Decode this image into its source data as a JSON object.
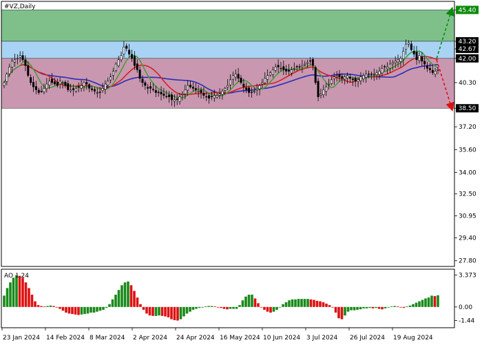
{
  "chart_data": [
    {
      "type": "candlestick",
      "title": "#VZ,Daily",
      "y_ticks": [
        "45.40",
        "43.20",
        "42.67",
        "42.00",
        "40.30",
        "38.50",
        "37.20",
        "35.60",
        "34.00",
        "32.50",
        "30.95",
        "29.40",
        "27.80"
      ],
      "highlighted_levels": [
        {
          "value": 45.4,
          "label": "45.40",
          "color": "#0a8a0a"
        },
        {
          "value": 43.2,
          "label": "43.20",
          "color": "#000000"
        },
        {
          "value": 42.67,
          "label": "42.67",
          "color": "#000000"
        },
        {
          "value": 42.0,
          "label": "42.00",
          "color": "#000000"
        },
        {
          "value": 38.5,
          "label": "38.50",
          "color": "#000000"
        }
      ],
      "zones": [
        {
          "name": "resistance-zone",
          "from": 43.2,
          "to": 45.4,
          "color": "#7fc08a"
        },
        {
          "name": "range-upper-zone",
          "from": 42.0,
          "to": 43.2,
          "color": "#a9d3f5"
        },
        {
          "name": "range-lower-zone",
          "from": 38.5,
          "to": 42.0,
          "color": "#c998b0"
        }
      ],
      "x_ticks": [
        "23 Jan 2024",
        "14 Feb 2024",
        "8 Mar 2024",
        "2 Apr 2024",
        "24 Apr 2024",
        "16 May 2024",
        "10 Jun 2024",
        "3 Jul 2024",
        "26 Jul 2024",
        "19 Aug 2024"
      ],
      "ylim": [
        27.4,
        46.0
      ],
      "n_bars": 164,
      "candle_colors": {
        "up": "#ffffff",
        "down": "#000000"
      },
      "close": [
        40.3,
        40.9,
        41.4,
        41.8,
        41.9,
        42.0,
        42.2,
        41.9,
        41.5,
        40.8,
        40.3,
        40.0,
        39.8,
        39.6,
        39.7,
        39.9,
        40.2,
        40.4,
        40.3,
        40.2,
        40.1,
        40.4,
        40.3,
        40.1,
        39.8,
        39.8,
        39.8,
        39.9,
        40.0,
        40.1,
        40.3,
        40.2,
        39.9,
        39.8,
        39.7,
        39.6,
        39.6,
        39.9,
        40.2,
        40.4,
        40.7,
        41.1,
        41.6,
        41.9,
        42.2,
        42.8,
        42.7,
        42.3,
        42.0,
        41.5,
        41.2,
        40.6,
        40.3,
        40.1,
        39.9,
        39.9,
        39.8,
        39.6,
        39.6,
        39.5,
        39.4,
        39.3,
        39.3,
        39.1,
        39.1,
        39.1,
        39.3,
        39.5,
        39.8,
        40.1,
        40.0,
        39.9,
        39.8,
        39.7,
        39.6,
        39.4,
        39.3,
        39.2,
        39.3,
        39.4,
        39.4,
        39.5,
        39.7,
        39.9,
        40.1,
        40.5,
        40.8,
        40.9,
        40.6,
        40.3,
        40.0,
        39.8,
        39.6,
        39.6,
        39.7,
        39.9,
        40.1,
        40.3,
        40.6,
        40.8,
        41.0,
        41.2,
        41.4,
        41.4,
        41.3,
        41.2,
        41.1,
        41.1,
        41.2,
        41.3,
        41.4,
        41.4,
        41.5,
        41.6,
        41.7,
        41.8,
        41.5,
        40.3,
        39.3,
        39.5,
        39.8,
        40.0,
        40.2,
        40.5,
        40.7,
        40.8,
        40.7,
        40.6,
        40.7,
        40.8,
        40.6,
        40.5,
        40.4,
        40.5,
        40.7,
        40.8,
        40.9,
        40.9,
        40.9,
        40.9,
        41.0,
        41.1,
        41.3,
        41.4,
        41.4,
        41.6,
        41.7,
        41.8,
        41.9,
        42.0,
        42.5,
        43.0,
        43.1,
        42.6,
        42.3,
        41.9,
        42.2,
        41.8,
        41.6,
        41.3,
        41.2,
        41.0,
        41.1,
        41.2
      ],
      "ma_series": [
        {
          "color": "#2a2ab8",
          "line_width": 1.6
        },
        {
          "color": "#d42222",
          "line_width": 1.6
        },
        {
          "color": "#4a9a3a",
          "line_width": 1.6
        }
      ],
      "forecast_arrows": [
        {
          "from": 42.0,
          "to": 45.4,
          "color": "#0a8a0a"
        },
        {
          "from": 41.9,
          "to": 38.5,
          "color": "#dd1111"
        }
      ]
    },
    {
      "type": "bar",
      "title": "AO",
      "title_value": "1.24",
      "y_ticks": [
        "3.373",
        "0.00",
        "-1.44"
      ],
      "ylim": [
        -2.2,
        4.0
      ],
      "colors": {
        "rising": "#1a8a1a",
        "falling": "#dd1111"
      },
      "values": [
        1.2,
        2.0,
        2.6,
        3.1,
        3.37,
        3.3,
        3.1,
        2.6,
        2.0,
        1.3,
        0.6,
        0.2,
        0.1,
        0.05,
        0.1,
        0.15,
        0.1,
        0.0,
        -0.2,
        -0.4,
        -0.6,
        -0.7,
        -0.75,
        -0.8,
        -0.85,
        -0.8,
        -0.75,
        -0.7,
        -0.6,
        -0.6,
        -0.5,
        -0.4,
        -0.3,
        -0.1,
        0.3,
        0.8,
        1.3,
        1.8,
        2.3,
        2.6,
        2.7,
        2.3,
        1.7,
        1.0,
        0.3,
        -0.3,
        -0.7,
        -0.9,
        -0.95,
        -0.95,
        -0.9,
        -0.95,
        -1.0,
        -1.1,
        -1.3,
        -1.4,
        -1.44,
        -1.3,
        -1.0,
        -0.7,
        -0.5,
        -0.3,
        -0.2,
        -0.1,
        0.0,
        0.05,
        0.1,
        0.1,
        0.05,
        0.0,
        -0.1,
        -0.2,
        -0.25,
        -0.2,
        -0.2,
        -0.2,
        0.2,
        0.7,
        1.1,
        1.3,
        1.3,
        0.9,
        0.4,
        0.0,
        -0.3,
        -0.5,
        -0.6,
        -0.5,
        -0.3,
        0.0,
        0.3,
        0.5,
        0.7,
        0.8,
        0.8,
        0.85,
        0.85,
        0.85,
        0.85,
        0.8,
        0.75,
        0.65,
        0.6,
        0.5,
        0.35,
        0.2,
        0.0,
        -0.6,
        -1.2,
        -1.3,
        -0.9,
        -0.5,
        -0.35,
        -0.35,
        -0.3,
        -0.25,
        -0.15,
        -0.15,
        -0.1,
        -0.15,
        -0.1,
        -0.2,
        -0.25,
        -0.15,
        -0.05,
        0.05,
        0.1,
        0.05,
        -0.05,
        -0.1,
        0.05,
        0.15,
        0.3,
        0.45,
        0.6,
        0.75,
        0.9,
        1.0,
        1.2,
        1.15,
        1.24
      ]
    }
  ]
}
